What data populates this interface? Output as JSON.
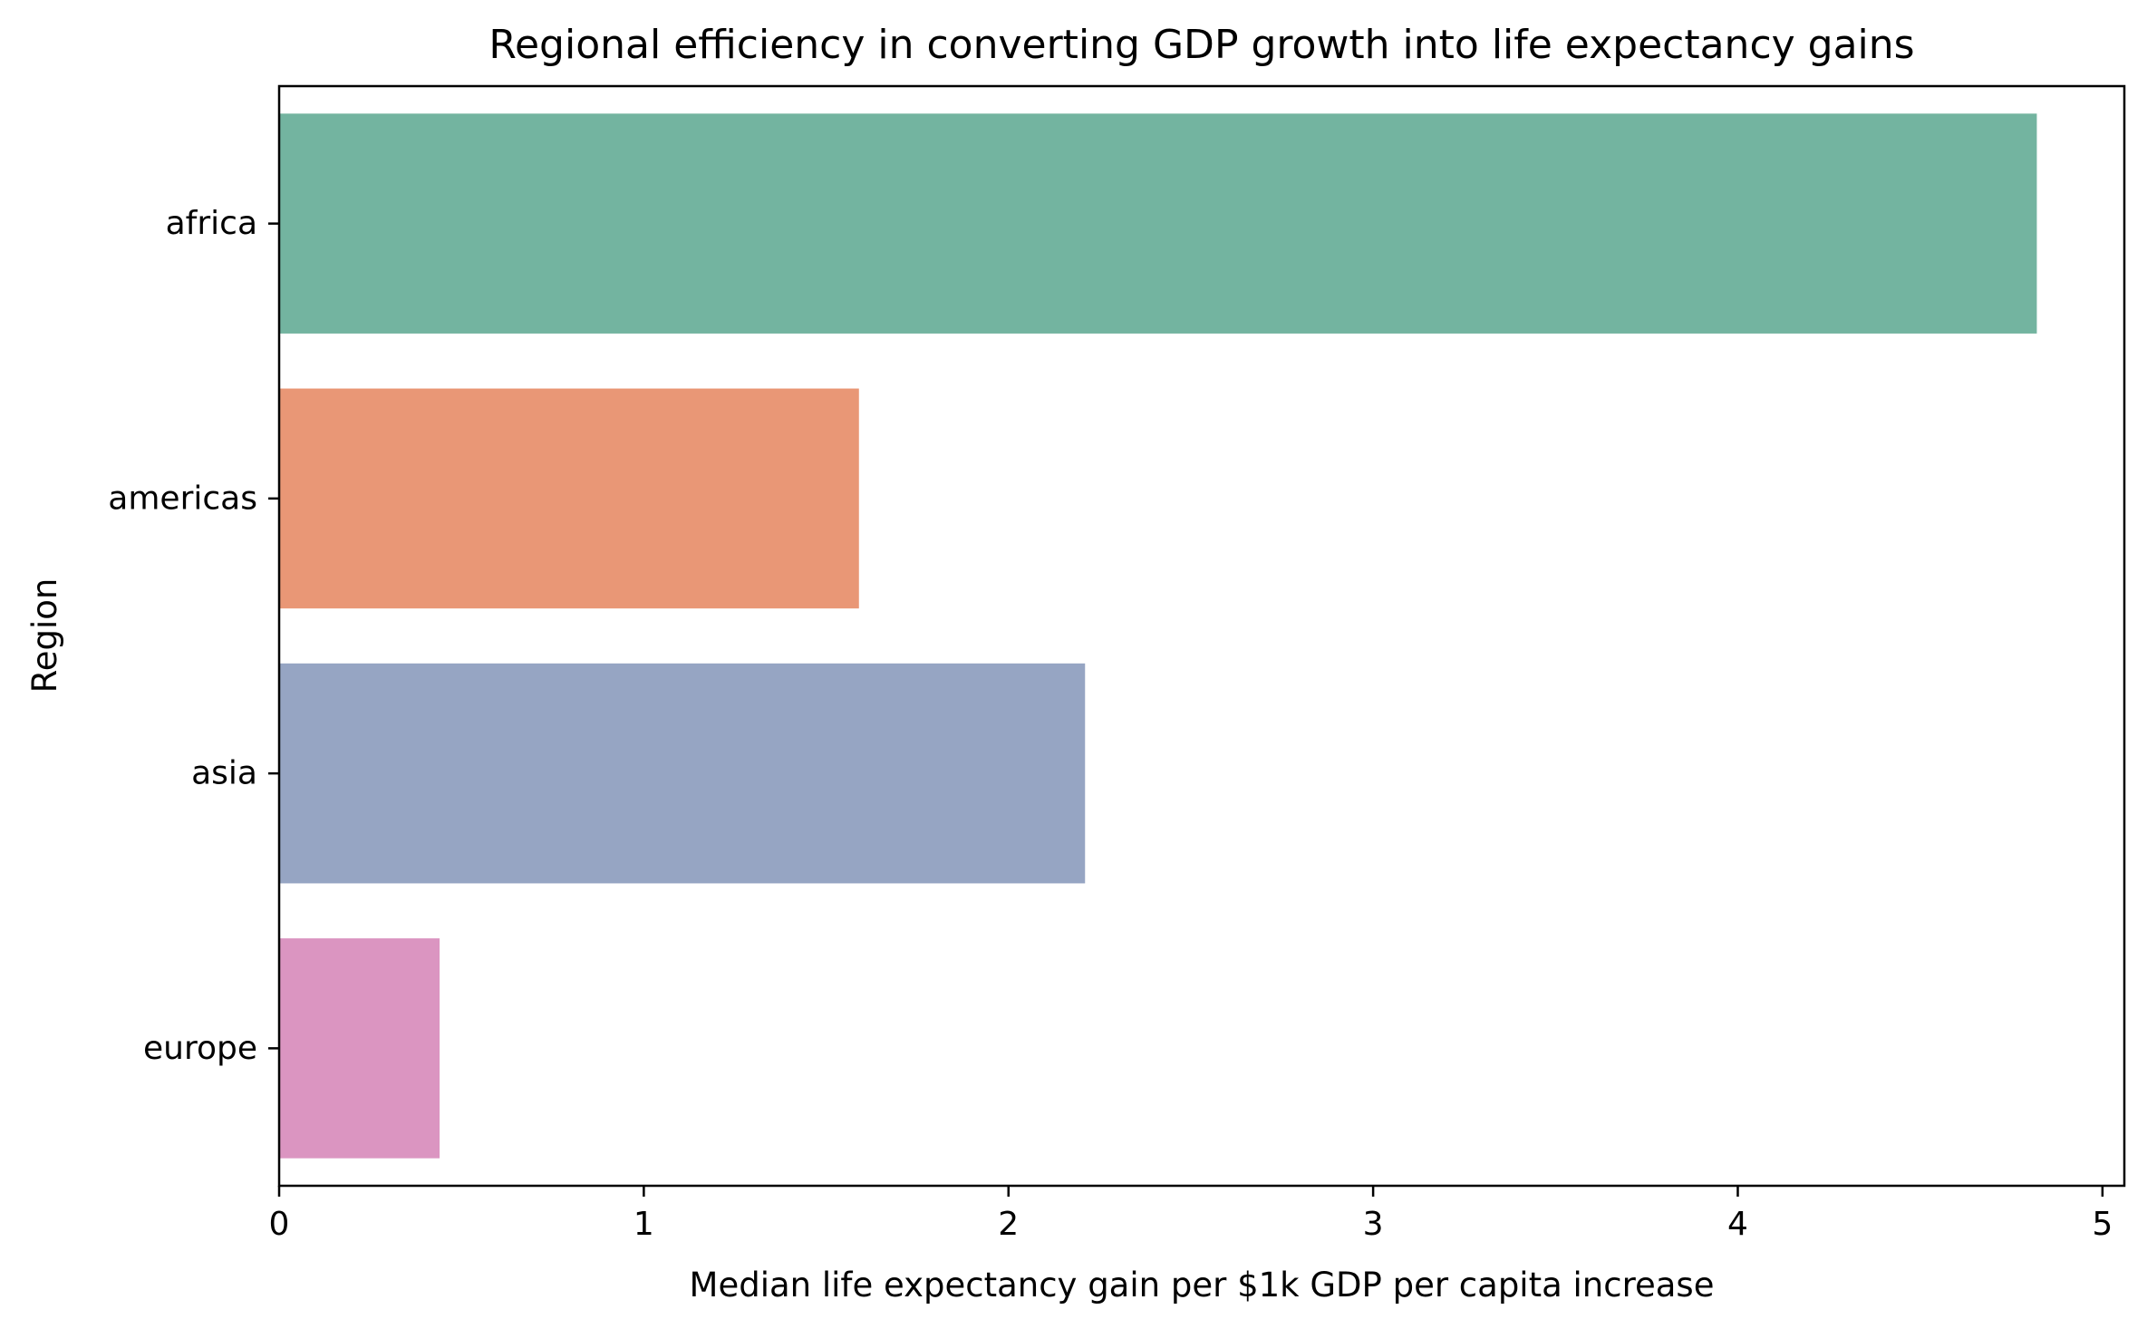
{
  "chart_data": {
    "type": "bar",
    "orientation": "horizontal",
    "title": "Regional efficiency in converting GDP growth into life expectancy gains",
    "xlabel": "Median life expectancy gain per $1k GDP per capita increase",
    "ylabel": "Region",
    "categories": [
      "africa",
      "americas",
      "asia",
      "europe"
    ],
    "values": [
      4.82,
      1.59,
      2.21,
      0.44
    ],
    "colors": [
      "#73b4a0",
      "#e99776",
      "#96a5c3",
      "#db95c1"
    ],
    "xlim": [
      0,
      5.06
    ],
    "xticks": [
      0,
      1,
      2,
      3,
      4,
      5
    ],
    "grid": false,
    "legend": "none"
  }
}
